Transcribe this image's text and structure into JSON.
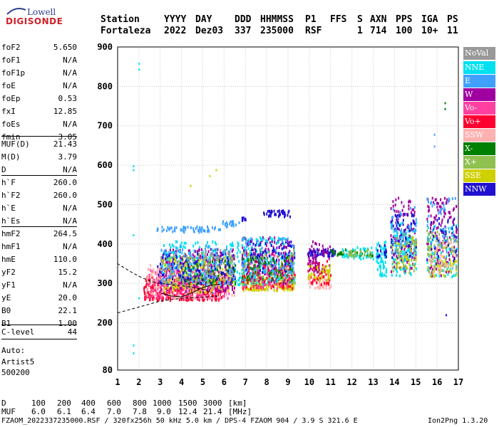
{
  "logo": {
    "line1": "Lowell",
    "line2": "DIGISONDE"
  },
  "header": {
    "labels": [
      "Station",
      "YYYY",
      "DAY",
      "DDD",
      "HHMMSS",
      "P1",
      "FFS",
      "S",
      "AXN",
      "PPS",
      "IGA",
      "PS"
    ],
    "values": [
      "Fortaleza",
      "2022",
      "Dez03",
      "337",
      "235000",
      "RSF",
      "1",
      "714",
      "100",
      "10+",
      "11"
    ]
  },
  "params": [
    {
      "name": "foF2",
      "value": "5.650"
    },
    {
      "name": "foF1",
      "value": "N/A"
    },
    {
      "name": "foF1p",
      "value": "N/A"
    },
    {
      "name": "foE",
      "value": "N/A"
    },
    {
      "name": "foEp",
      "value": "0.53"
    },
    {
      "name": "fxI",
      "value": "12.85"
    },
    {
      "name": "foEs",
      "value": "N/A"
    },
    {
      "name": "fmin",
      "value": "3.05"
    },
    {
      "name": "MUF(D)",
      "value": "21.43"
    },
    {
      "name": "M(D)",
      "value": "3.79"
    },
    {
      "name": "D",
      "value": "N/A"
    },
    {
      "name": "h`F",
      "value": "260.0"
    },
    {
      "name": "h`F2",
      "value": "260.0"
    },
    {
      "name": "h`E",
      "value": "N/A"
    },
    {
      "name": "h`Es",
      "value": "N/A"
    },
    {
      "name": "hmF2",
      "value": "264.5"
    },
    {
      "name": "hmF1",
      "value": "N/A"
    },
    {
      "name": "hmE",
      "value": "110.0"
    },
    {
      "name": "yF2",
      "value": "15.2"
    },
    {
      "name": "yF1",
      "value": "N/A"
    },
    {
      "name": "yE",
      "value": "20.0"
    },
    {
      "name": "B0",
      "value": "22.1"
    },
    {
      "name": "B1",
      "value": "1.00"
    },
    {
      "name": "C-level",
      "value": "44"
    }
  ],
  "auto": {
    "line1": "Auto:",
    "line2": "Artist5",
    "line3": "500200"
  },
  "legend": [
    {
      "label": "NoVal",
      "color": "#999999"
    },
    {
      "label": "NNE",
      "color": "#00e0f0"
    },
    {
      "label": "E",
      "color": "#40a0ff"
    },
    {
      "label": "W",
      "color": "#a000a0"
    },
    {
      "label": "Vo-",
      "color": "#ff40a0"
    },
    {
      "label": "Vo+",
      "color": "#ff0030"
    },
    {
      "label": "SSW",
      "color": "#ffb0b0"
    },
    {
      "label": "X-",
      "color": "#008000"
    },
    {
      "label": "X+",
      "color": "#90c050"
    },
    {
      "label": "SSE",
      "color": "#d0d000"
    },
    {
      "label": "NNW",
      "color": "#2010d0"
    }
  ],
  "bottom": {
    "d_label": "D",
    "d_values": [
      "100",
      "200",
      "400",
      "600",
      "800",
      "1000",
      "1500",
      "3000"
    ],
    "d_unit": "[km]",
    "muf_label": "MUF",
    "muf_values": [
      "6.0",
      "6.1",
      "6.4",
      "7.0",
      "7.8",
      "9.0",
      "12.4",
      "21.4"
    ],
    "muf_unit": "[MHz]",
    "info": "FZAOM_2022337235000.RSF / 320fx256h 50 kHz 5.0 km / DPS-4 FZAOM 904 / 3.9 S 321.6 E",
    "version": "Ion2Png 1.3.20"
  },
  "chart_data": {
    "type": "scatter",
    "xlim": [
      1,
      17
    ],
    "ylim": [
      80,
      900
    ],
    "xticks": [
      1,
      2,
      3,
      4,
      5,
      6,
      7,
      8,
      9,
      10,
      11,
      12,
      13,
      14,
      15,
      16,
      17
    ],
    "yticks": [
      80,
      200,
      300,
      400,
      500,
      600,
      700,
      800,
      900
    ],
    "grid": true,
    "legend_position": "right",
    "clusters": [
      {
        "series": "E",
        "x": [
          2.8,
          5.8
        ],
        "y": [
          433,
          447
        ],
        "n": 60
      },
      {
        "series": "E",
        "x": [
          5.8,
          6.7
        ],
        "y": [
          447,
          462
        ],
        "n": 20
      },
      {
        "series": "NNW",
        "x": [
          6.8,
          7.0
        ],
        "y": [
          462,
          470
        ],
        "n": 8
      },
      {
        "series": "NNW",
        "x": [
          7.8,
          9.1
        ],
        "y": [
          472,
          488
        ],
        "n": 40
      },
      {
        "series": "Vo+",
        "x": [
          2.2,
          6.0
        ],
        "y": [
          260,
          320
        ],
        "n": 420
      },
      {
        "series": "Vo-",
        "x": [
          2.3,
          6.2
        ],
        "y": [
          265,
          340
        ],
        "n": 260
      },
      {
        "series": "SSW",
        "x": [
          2.3,
          6.5
        ],
        "y": [
          265,
          350
        ],
        "n": 200
      },
      {
        "series": "W",
        "x": [
          3.0,
          6.5
        ],
        "y": [
          280,
          390
        ],
        "n": 260
      },
      {
        "series": "NNE",
        "x": [
          3.0,
          6.8
        ],
        "y": [
          300,
          410
        ],
        "n": 200
      },
      {
        "series": "SSE",
        "x": [
          3.0,
          6.5
        ],
        "y": [
          280,
          370
        ],
        "n": 140
      },
      {
        "series": "X+",
        "x": [
          3.2,
          6.5
        ],
        "y": [
          290,
          380
        ],
        "n": 90
      },
      {
        "series": "X-",
        "x": [
          4.0,
          6.5
        ],
        "y": [
          300,
          360
        ],
        "n": 60
      },
      {
        "series": "NNW",
        "x": [
          2.8,
          6.5
        ],
        "y": [
          300,
          380
        ],
        "n": 120
      },
      {
        "series": "E",
        "x": [
          3.0,
          6.5
        ],
        "y": [
          300,
          400
        ],
        "n": 90
      },
      {
        "series": "NoVal",
        "x": [
          3.0,
          6.5
        ],
        "y": [
          330,
          390
        ],
        "n": 40
      },
      {
        "series": "SSE",
        "x": [
          6.8,
          9.3
        ],
        "y": [
          285,
          320
        ],
        "n": 200
      },
      {
        "series": "Vo+",
        "x": [
          6.8,
          9.3
        ],
        "y": [
          290,
          360
        ],
        "n": 160
      },
      {
        "series": "Vo-",
        "x": [
          6.8,
          9.3
        ],
        "y": [
          290,
          380
        ],
        "n": 120
      },
      {
        "series": "W",
        "x": [
          6.8,
          9.3
        ],
        "y": [
          300,
          420
        ],
        "n": 160
      },
      {
        "series": "NNE",
        "x": [
          6.8,
          9.3
        ],
        "y": [
          300,
          420
        ],
        "n": 150
      },
      {
        "series": "NNW",
        "x": [
          6.8,
          9.3
        ],
        "y": [
          330,
          410
        ],
        "n": 100
      },
      {
        "series": "X+",
        "x": [
          6.8,
          9.3
        ],
        "y": [
          300,
          390
        ],
        "n": 70
      },
      {
        "series": "E",
        "x": [
          6.8,
          9.3
        ],
        "y": [
          330,
          420
        ],
        "n": 60
      },
      {
        "series": "X-",
        "x": [
          6.8,
          9.3
        ],
        "y": [
          310,
          370
        ],
        "n": 50
      },
      {
        "series": "SSW",
        "x": [
          9.9,
          11.0
        ],
        "y": [
          290,
          320
        ],
        "n": 60
      },
      {
        "series": "Vo+",
        "x": [
          9.9,
          11.0
        ],
        "y": [
          300,
          360
        ],
        "n": 50
      },
      {
        "series": "NNW",
        "x": [
          9.9,
          11.2
        ],
        "y": [
          370,
          390
        ],
        "n": 70
      },
      {
        "series": "W",
        "x": [
          9.9,
          11.0
        ],
        "y": [
          330,
          410
        ],
        "n": 60
      },
      {
        "series": "SSE",
        "x": [
          9.9,
          11.0
        ],
        "y": [
          310,
          350
        ],
        "n": 40
      },
      {
        "series": "X-",
        "x": [
          11.0,
          13.0
        ],
        "y": [
          372,
          390
        ],
        "n": 40
      },
      {
        "series": "NNE",
        "x": [
          11.5,
          13.2
        ],
        "y": [
          365,
          395
        ],
        "n": 40
      },
      {
        "series": "X+",
        "x": [
          11.5,
          13.0
        ],
        "y": [
          370,
          390
        ],
        "n": 25
      },
      {
        "series": "NNE",
        "x": [
          13.1,
          13.6
        ],
        "y": [
          320,
          410
        ],
        "n": 60
      },
      {
        "series": "NNW",
        "x": [
          13.1,
          13.6
        ],
        "y": [
          370,
          400
        ],
        "n": 15
      },
      {
        "series": "W",
        "x": [
          13.8,
          15.0
        ],
        "y": [
          330,
          520
        ],
        "n": 120
      },
      {
        "series": "NNE",
        "x": [
          13.8,
          15.0
        ],
        "y": [
          320,
          460
        ],
        "n": 110
      },
      {
        "series": "NNW",
        "x": [
          13.8,
          15.0
        ],
        "y": [
          360,
          480
        ],
        "n": 60
      },
      {
        "series": "SSE",
        "x": [
          13.8,
          15.0
        ],
        "y": [
          340,
          420
        ],
        "n": 40
      },
      {
        "series": "X+",
        "x": [
          13.8,
          15.0
        ],
        "y": [
          330,
          430
        ],
        "n": 40
      },
      {
        "series": "E",
        "x": [
          13.8,
          15.0
        ],
        "y": [
          380,
          500
        ],
        "n": 40
      },
      {
        "series": "W",
        "x": [
          15.5,
          16.9
        ],
        "y": [
          320,
          520
        ],
        "n": 130
      },
      {
        "series": "NNE",
        "x": [
          15.5,
          16.9
        ],
        "y": [
          320,
          450
        ],
        "n": 80
      },
      {
        "series": "SSE",
        "x": [
          15.5,
          16.9
        ],
        "y": [
          320,
          400
        ],
        "n": 60
      },
      {
        "series": "X+",
        "x": [
          15.5,
          16.9
        ],
        "y": [
          330,
          440
        ],
        "n": 60
      },
      {
        "series": "NNW",
        "x": [
          15.5,
          16.9
        ],
        "y": [
          350,
          470
        ],
        "n": 40
      },
      {
        "series": "SSW",
        "x": [
          15.5,
          16.9
        ],
        "y": [
          330,
          420
        ],
        "n": 40
      },
      {
        "series": "E",
        "x": [
          15.5,
          16.9
        ],
        "y": [
          380,
          520
        ],
        "n": 40
      }
    ],
    "points": [
      {
        "series": "NNE",
        "x": 1.72,
        "y": 590
      },
      {
        "series": "NNE",
        "x": 1.72,
        "y": 600
      },
      {
        "series": "NNE",
        "x": 1.72,
        "y": 425
      },
      {
        "series": "NNE",
        "x": 1.72,
        "y": 145
      },
      {
        "series": "NNE",
        "x": 1.72,
        "y": 125
      },
      {
        "series": "NNE",
        "x": 1.98,
        "y": 860
      },
      {
        "series": "NNE",
        "x": 1.98,
        "y": 845
      },
      {
        "series": "NNE",
        "x": 1.98,
        "y": 265
      },
      {
        "series": "SSE",
        "x": 4.4,
        "y": 550
      },
      {
        "series": "SSE",
        "x": 5.6,
        "y": 590
      },
      {
        "series": "SSE",
        "x": 5.3,
        "y": 575
      },
      {
        "series": "E",
        "x": 15.85,
        "y": 680
      },
      {
        "series": "E",
        "x": 15.85,
        "y": 650
      },
      {
        "series": "X-",
        "x": 16.35,
        "y": 760
      },
      {
        "series": "X-",
        "x": 16.35,
        "y": 745
      },
      {
        "series": "NNW",
        "x": 16.4,
        "y": 222
      }
    ],
    "profile": [
      {
        "x": 1.0,
        "y": 225
      },
      {
        "x": 2.0,
        "y": 240
      },
      {
        "x": 3.0,
        "y": 255
      },
      {
        "x": 4.0,
        "y": 262
      },
      {
        "x": 5.0,
        "y": 265
      },
      {
        "x": 5.65,
        "y": 267
      },
      {
        "x": 5.5,
        "y": 275
      },
      {
        "x": 5.0,
        "y": 285
      },
      {
        "x": 4.5,
        "y": 290
      },
      {
        "x": 4.0,
        "y": 294
      },
      {
        "x": 3.5,
        "y": 297
      },
      {
        "x": 3.0,
        "y": 300
      },
      {
        "x": 2.5,
        "y": 306
      },
      {
        "x": 2.0,
        "y": 318
      },
      {
        "x": 1.6,
        "y": 330
      },
      {
        "x": 1.0,
        "y": 350
      }
    ],
    "trace": [
      {
        "x": 3.05,
        "y": 275
      },
      {
        "x": 3.5,
        "y": 268
      },
      {
        "x": 4.0,
        "y": 266
      },
      {
        "x": 4.5,
        "y": 276
      },
      {
        "x": 5.0,
        "y": 290
      },
      {
        "x": 5.5,
        "y": 296
      },
      {
        "x": 5.8,
        "y": 298
      }
    ]
  }
}
